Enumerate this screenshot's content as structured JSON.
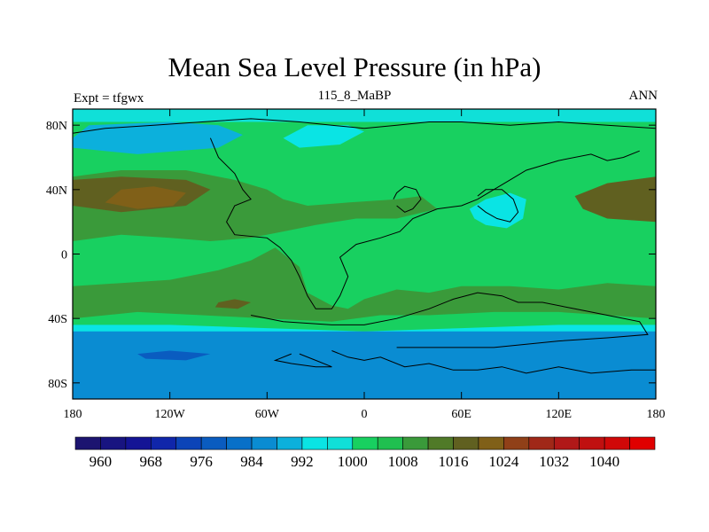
{
  "chart_data": {
    "type": "heatmap",
    "title": "Mean Sea Level Pressure (in hPa)",
    "center_subtitle": "115_8_MaBP",
    "left_subtitle": "Expt = tfgwx",
    "right_subtitle": "ANN",
    "x_range": [
      -180,
      180
    ],
    "y_range": [
      -90,
      90
    ],
    "x_ticks": [
      {
        "value": -180,
        "label": "180"
      },
      {
        "value": -120,
        "label": "120W"
      },
      {
        "value": -60,
        "label": "60W"
      },
      {
        "value": 0,
        "label": "0"
      },
      {
        "value": 60,
        "label": "60E"
      },
      {
        "value": 120,
        "label": "120E"
      },
      {
        "value": 180,
        "label": "180"
      }
    ],
    "y_ticks": [
      {
        "value": 80,
        "label": "80N"
      },
      {
        "value": 40,
        "label": "40N"
      },
      {
        "value": 0,
        "label": "0"
      },
      {
        "value": -40,
        "label": "40S"
      },
      {
        "value": -80,
        "label": "80S"
      }
    ],
    "colorbar": {
      "levels": [
        956,
        960,
        964,
        968,
        972,
        976,
        980,
        984,
        988,
        992,
        996,
        1000,
        1004,
        1008,
        1012,
        1016,
        1020,
        1024,
        1028,
        1032,
        1036,
        1040,
        1044
      ],
      "colors": [
        "#1c1470",
        "#181480",
        "#141495",
        "#1026aa",
        "#0c44b8",
        "#0a5cc0",
        "#0870c8",
        "#0a8cd2",
        "#0cb0dc",
        "#0ae4e4",
        "#10e0d8",
        "#18d060",
        "#20c050",
        "#3a9a3a",
        "#507a28",
        "#606020",
        "#806018",
        "#904018",
        "#a02818",
        "#b01818",
        "#c01010",
        "#d00808",
        "#e00000"
      ],
      "labels": [
        "960",
        "968",
        "976",
        "984",
        "992",
        "1000",
        "1008",
        "1016",
        "1024",
        "1032",
        "1040"
      ]
    },
    "fields": {
      "background_level": 1000,
      "regions": [
        {
          "name": "northern-high-latitudes",
          "level": 996
        },
        {
          "name": "north-pacific-low",
          "level": 988
        },
        {
          "name": "north-atlantic-low",
          "level": 992
        },
        {
          "name": "asian-low",
          "level": 992
        },
        {
          "name": "subtropical-high-belt-north",
          "level": 1008
        },
        {
          "name": "north-pacific-high",
          "level": 1016
        },
        {
          "name": "north-pacific-high-core",
          "level": 1020
        },
        {
          "name": "east-pacific-high",
          "level": 1016
        },
        {
          "name": "southern-subtropical-high-belt",
          "level": 1008
        },
        {
          "name": "south-pacific-high-core",
          "level": 1016
        },
        {
          "name": "southern-ocean-trough",
          "level": 992
        },
        {
          "name": "antarctic-band",
          "level": 984
        },
        {
          "name": "deep-low-core",
          "level": 976
        }
      ]
    }
  }
}
